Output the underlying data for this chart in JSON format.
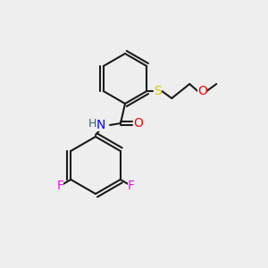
{
  "bg_color": "#eeeeee",
  "bond_color": "#1a1a1a",
  "line_width": 1.5,
  "atom_colors": {
    "S": "#cccc00",
    "O": "#ff0000",
    "N": "#0000ff",
    "F": "#ff00ff",
    "H": "#336666"
  },
  "font_size": 9,
  "fig_size": [
    3.0,
    3.0
  ],
  "dpi": 100
}
